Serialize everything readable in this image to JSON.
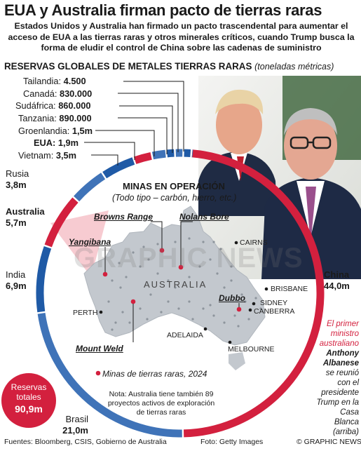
{
  "title": "EUA y Australia firman pacto de tierras raras",
  "intro": "Estados Unidos y Australia han firmado un pacto trascendental para aumentar el acceso de EUA a las tierras raras y otros minerales críticos, cuando Trump busca la forma de eludir el control de China sobre las cadenas de suministro",
  "reserves": {
    "heading": "RESERVAS GLOBALES DE METALES TIERRAS RARAS",
    "unit": "(toneladas métricas)",
    "top_countries": [
      {
        "name": "Tailandia:",
        "value": "4.500"
      },
      {
        "name": "Canadá:",
        "value": "830.000"
      },
      {
        "name": "Sudáfrica:",
        "value": "860.000"
      },
      {
        "name": "Tanzania:",
        "value": "890.000"
      },
      {
        "name": "Groenlandia:",
        "value": "1,5m"
      },
      {
        "name": "EUA:",
        "value": "1,9m"
      },
      {
        "name": "Vietnam:",
        "value": "3,5m"
      }
    ],
    "side_countries": {
      "russia": {
        "name": "Rusia",
        "value": "3,8m"
      },
      "australia": {
        "name": "Australia",
        "value": "5,7m"
      },
      "india": {
        "name": "India",
        "value": "6,9m"
      },
      "brazil": {
        "name": "Brasil",
        "value": "21,0m"
      },
      "china": {
        "name": "China",
        "value": "44,0m"
      }
    },
    "total": {
      "label": "Reservas totales",
      "value": "90,9m"
    },
    "ring_values_m": [
      {
        "name": "China",
        "value": 44.0,
        "color": "#d3203e"
      },
      {
        "name": "Brasil",
        "value": 21.0,
        "color": "#3f73b8"
      },
      {
        "name": "India",
        "value": 6.9,
        "color": "#1f5aa6"
      },
      {
        "name": "Australia",
        "value": 5.7,
        "color": "#d3203e"
      },
      {
        "name": "Rusia",
        "value": 3.8,
        "color": "#3f73b8"
      },
      {
        "name": "Vietnam",
        "value": 3.5,
        "color": "#1f5aa6"
      },
      {
        "name": "EUA",
        "value": 1.9,
        "color": "#d3203e"
      },
      {
        "name": "Groenlandia",
        "value": 1.5,
        "color": "#3f73b8"
      },
      {
        "name": "Tanzania",
        "value": 0.89,
        "color": "#1f5aa6"
      },
      {
        "name": "Sudáfrica",
        "value": 0.86,
        "color": "#3f73b8"
      },
      {
        "name": "Canadá",
        "value": 0.83,
        "color": "#1f5aa6"
      },
      {
        "name": "Tailandia",
        "value": 0.0045,
        "color": "#3f73b8"
      }
    ]
  },
  "mines": {
    "title": "MINAS EN OPERACIÓN",
    "subtitle": "(Todo tipo – carbón, hierro, etc.)",
    "sites": {
      "browns_range": "Browns Range",
      "nolans_bore": "Nolans Bore",
      "yangibana": "Yangibana",
      "dubbo": "Dubbo",
      "mount_weld": "Mount Weld"
    },
    "cities": {
      "cairns": "CAIRNS",
      "brisbane": "BRISBANE",
      "sydney": "SIDNEY",
      "canberra": "CANBERRA",
      "melbourne": "MELBOURNE",
      "adelaide": "ADELAIDA",
      "perth": "PERTH"
    },
    "country_label": "AUSTRALIA",
    "legend": "Minas de tierras raras, 2024",
    "note": "Nota: Australia tiene también 89 proyectos activos de exploración de tierras raras"
  },
  "caption": {
    "line1": "El primer ministro australiano",
    "name": "Anthony Albanese",
    "line2": "se reunió con el presidente Trump en la Casa Blanca",
    "line3": "(arriba)"
  },
  "footer": {
    "sources": "Fuentes: Bloomberg, CSIS, Gobierno de Australia",
    "photo": "Foto: Getty Images",
    "copyright": "© GRAPHIC NEWS"
  },
  "watermark": "GRAPHIC NEWS",
  "colors": {
    "red": "#d3203e",
    "blue": "#1f5aa6",
    "lightblue": "#3f73b8",
    "map": "#bfc5cc"
  }
}
